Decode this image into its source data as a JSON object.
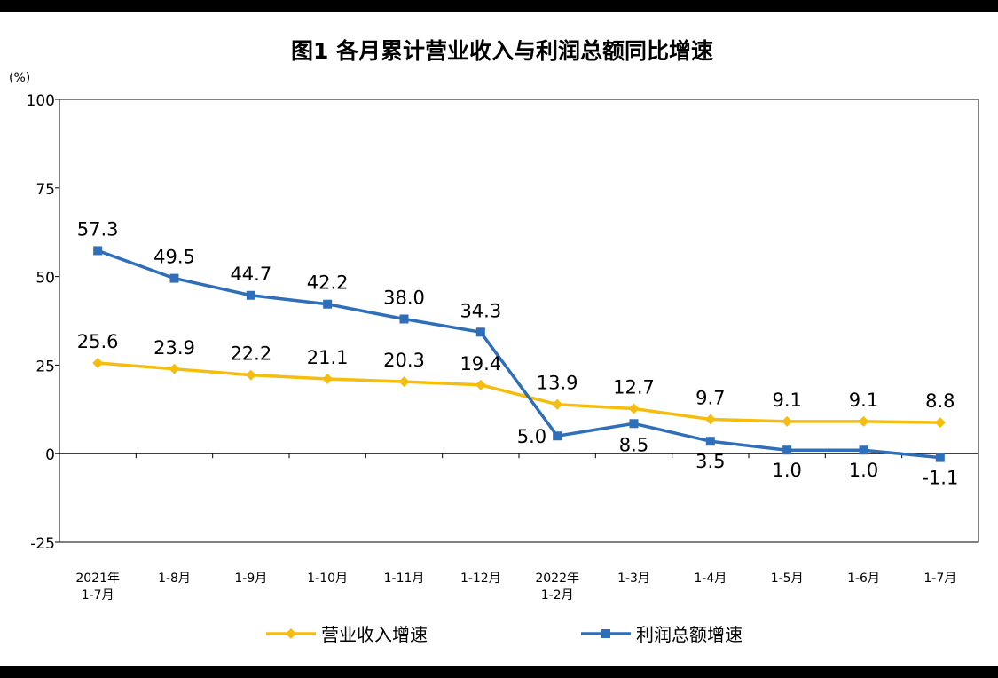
{
  "chart_data": {
    "type": "line",
    "title": "图1  各月累计营业收入与利润总额同比增速",
    "ylabel": "(%)",
    "xlabel": "",
    "ylim": [
      -25,
      100
    ],
    "yticks": [
      "100",
      "75",
      "50",
      "25",
      "0",
      "-25"
    ],
    "categories": [
      [
        "2021年",
        "1-7月"
      ],
      [
        "1-8月"
      ],
      [
        "1-9月"
      ],
      [
        "1-10月"
      ],
      [
        "1-11月"
      ],
      [
        "1-12月"
      ],
      [
        "2022年",
        "1-2月"
      ],
      [
        "1-3月"
      ],
      [
        "1-4月"
      ],
      [
        "1-5月"
      ],
      [
        "1-6月"
      ],
      [
        "1-7月"
      ]
    ],
    "series": [
      {
        "name": "营业收入增速",
        "color": "#F5BE0F",
        "marker": "diamond",
        "values": [
          25.6,
          23.9,
          22.2,
          21.1,
          20.3,
          19.4,
          13.9,
          12.7,
          9.7,
          9.1,
          9.1,
          8.8
        ],
        "labels": [
          "25.6",
          "23.9",
          "22.2",
          "21.1",
          "20.3",
          "19.4",
          "13.9",
          "12.7",
          "9.7",
          "9.1",
          "9.1",
          "8.8"
        ]
      },
      {
        "name": "利润总额增速",
        "color": "#2F6EB8",
        "marker": "square",
        "values": [
          57.3,
          49.5,
          44.7,
          42.2,
          38.0,
          34.3,
          5.0,
          8.5,
          3.5,
          1.0,
          1.0,
          -1.1
        ],
        "labels": [
          "57.3",
          "49.5",
          "44.7",
          "42.2",
          "38.0",
          "34.3",
          "5.0",
          "8.5",
          "3.5",
          "1.0",
          "1.0",
          "-1.1"
        ]
      }
    ],
    "grid": false,
    "legend": "bottom"
  }
}
